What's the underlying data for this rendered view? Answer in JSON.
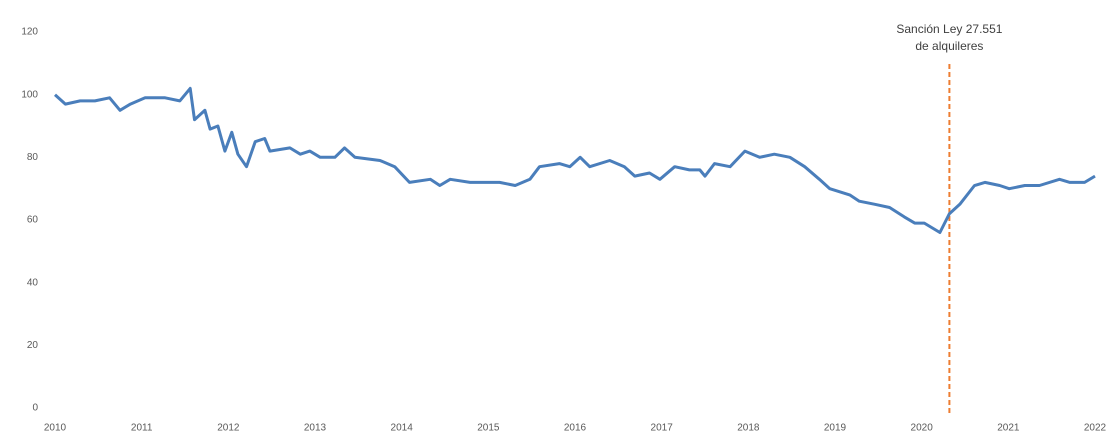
{
  "chart_data": {
    "type": "line",
    "x": [
      2010.0,
      2010.12,
      2010.29,
      2010.46,
      2010.63,
      2010.75,
      2010.87,
      2011.04,
      2011.27,
      2011.44,
      2011.56,
      2011.61,
      2011.73,
      2011.79,
      2011.88,
      2011.96,
      2012.04,
      2012.11,
      2012.21,
      2012.31,
      2012.42,
      2012.48,
      2012.71,
      2012.83,
      2012.94,
      2013.06,
      2013.23,
      2013.34,
      2013.46,
      2013.75,
      2013.92,
      2014.09,
      2014.33,
      2014.44,
      2014.56,
      2014.79,
      2015.13,
      2015.31,
      2015.48,
      2015.59,
      2015.82,
      2015.94,
      2016.06,
      2016.17,
      2016.4,
      2016.57,
      2016.69,
      2016.86,
      2016.98,
      2017.15,
      2017.32,
      2017.44,
      2017.5,
      2017.61,
      2017.79,
      2017.96,
      2018.13,
      2018.3,
      2018.48,
      2018.65,
      2018.82,
      2018.94,
      2019.17,
      2019.28,
      2019.46,
      2019.63,
      2019.8,
      2019.92,
      2020.03,
      2020.21,
      2020.32,
      2020.44,
      2020.61,
      2020.73,
      2020.9,
      2021.01,
      2021.19,
      2021.36,
      2021.59,
      2021.71,
      2021.88,
      2022.0
    ],
    "series": [
      {
        "color": "#4a7ebb",
        "values": [
          100,
          97,
          98,
          98,
          99,
          95,
          97,
          99,
          99,
          98,
          102,
          92,
          95,
          89,
          90,
          82,
          88,
          81,
          77,
          85,
          86,
          82,
          83,
          81,
          82,
          80,
          80,
          83,
          80,
          79,
          77,
          72,
          73,
          71,
          73,
          72,
          72,
          71,
          73,
          77,
          78,
          77,
          80,
          77,
          79,
          77,
          74,
          75,
          73,
          77,
          76,
          76,
          74,
          78,
          77,
          82,
          80,
          81,
          80,
          77,
          73,
          70,
          68,
          66,
          65,
          64,
          61,
          59,
          59,
          56,
          62,
          65,
          71,
          72,
          71,
          70,
          71,
          71,
          73,
          72,
          72,
          74
        ]
      }
    ],
    "xlim": [
      2010,
      2022
    ],
    "xticks": [
      2010,
      2011,
      2012,
      2013,
      2014,
      2015,
      2016,
      2017,
      2018,
      2019,
      2020,
      2021,
      2022
    ],
    "ylim": [
      0,
      120
    ],
    "yticks": [
      0,
      20,
      40,
      60,
      80,
      100,
      120
    ],
    "annotation": {
      "lines": [
        "Sanción Ley 27.551",
        "de alquileres"
      ],
      "x": 2020.32,
      "color": "#ed7d31"
    }
  }
}
